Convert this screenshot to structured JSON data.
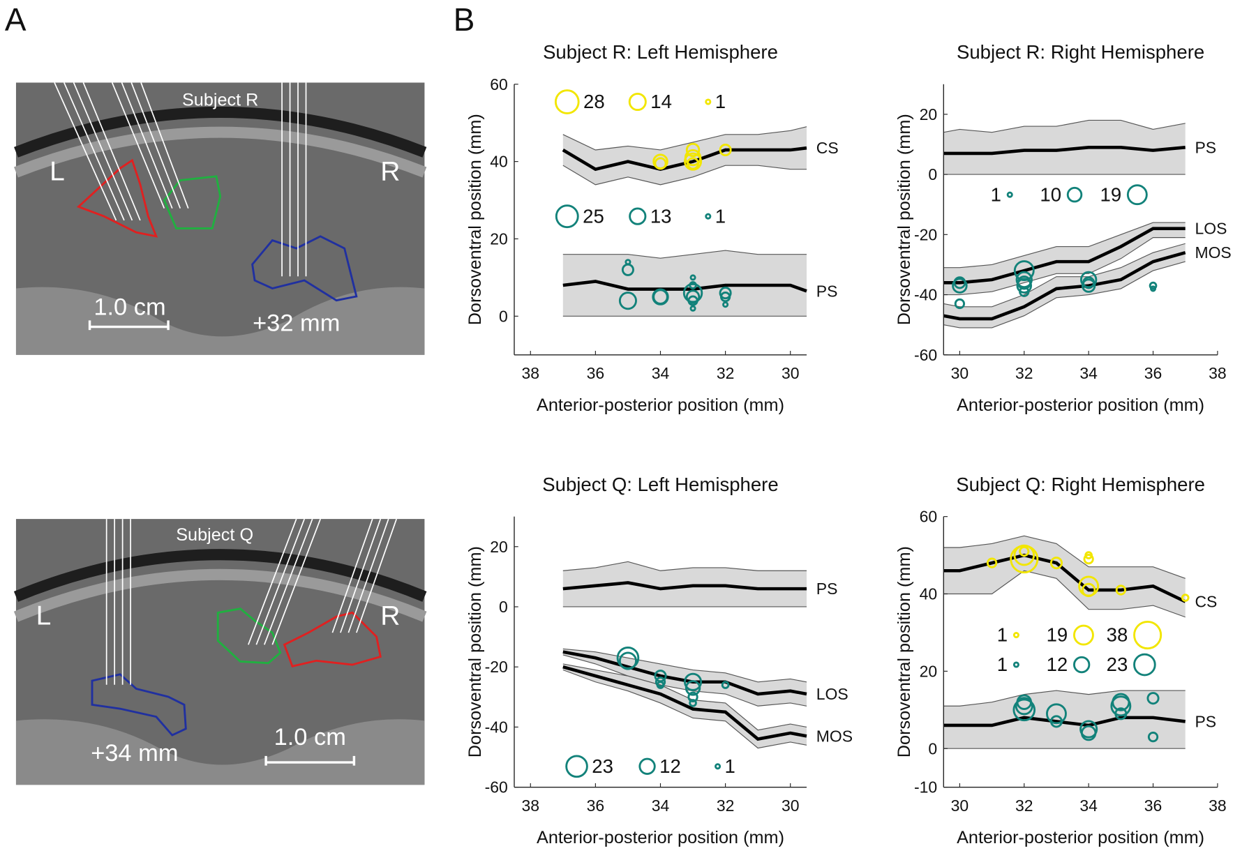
{
  "panel_labels": [
    "A",
    "B"
  ],
  "images": [
    {
      "title": "Subject R",
      "left": "L",
      "right": "R",
      "scale_bar": "1.0 cm",
      "position": "+32 mm"
    },
    {
      "title": "Subject Q",
      "left": "L",
      "right": "R",
      "scale_bar": "1.0 cm",
      "position": "+34 mm"
    }
  ],
  "chart_data": [
    {
      "type": "scatter",
      "title": "Subject R: Left Hemisphere",
      "xlabel": "Anterior-posterior position (mm)",
      "ylabel": "Dorsoventral position (mm)",
      "xlim": [
        38.5,
        29.5
      ],
      "xticks": [
        38,
        36,
        34,
        32,
        30
      ],
      "ylim": [
        -10,
        60
      ],
      "yticks": [
        0,
        20,
        40,
        60
      ],
      "band_color": "#d9d9d9",
      "line_color": "#000000",
      "bands": [
        {
          "name": "CS",
          "x": [
            37,
            36,
            35,
            34,
            33,
            32,
            31,
            30,
            29.5
          ],
          "values": [
            43,
            38,
            40,
            38,
            40,
            43,
            43,
            43,
            43.5
          ],
          "upper": [
            47,
            43,
            44,
            43,
            45,
            47,
            47,
            48,
            49
          ],
          "lower": [
            39,
            34,
            36,
            34,
            36,
            39,
            39,
            38,
            38
          ]
        },
        {
          "name": "PS",
          "x": [
            37,
            36,
            35,
            34,
            33,
            32,
            31,
            30,
            29.5
          ],
          "values": [
            8,
            9,
            7,
            7,
            7,
            8,
            8,
            8,
            6.5
          ],
          "upper": [
            16,
            16,
            16,
            15,
            16,
            17,
            16,
            16,
            16
          ],
          "lower": [
            0,
            0,
            0,
            0,
            0,
            0,
            0,
            0,
            0
          ]
        }
      ],
      "series": [
        {
          "color": "#f2e600",
          "x": [
            34,
            34,
            33,
            33,
            33,
            33,
            32
          ],
          "values": [
            40,
            39.5,
            43,
            41,
            39.5,
            40,
            43
          ],
          "sizes": [
            10,
            6,
            8,
            12,
            6,
            14,
            6
          ]
        },
        {
          "color": "#12827a",
          "x": [
            35,
            35,
            35,
            34,
            34,
            33,
            33,
            33,
            33,
            33,
            33,
            32,
            32,
            32
          ],
          "values": [
            14,
            12,
            4,
            5,
            5,
            6,
            5,
            4,
            2,
            8,
            10,
            6,
            5,
            3
          ],
          "sizes": [
            1,
            6,
            14,
            10,
            12,
            17,
            8,
            4,
            1,
            2,
            1,
            6,
            4,
            1
          ]
        }
      ],
      "size_legends": [
        {
          "color": "#f2e600",
          "sizes": [
            28,
            14,
            1
          ]
        },
        {
          "color": "#12827a",
          "sizes": [
            25,
            13,
            1
          ]
        }
      ]
    },
    {
      "type": "scatter",
      "title": "Subject R: Right Hemisphere",
      "xlabel": "Anterior-posterior position (mm)",
      "ylabel": "Dorsoventral position (mm)",
      "xlim": [
        29.5,
        38
      ],
      "xticks": [
        30,
        32,
        34,
        36,
        38
      ],
      "ylim": [
        -60,
        30
      ],
      "yticks": [
        -60,
        -40,
        -20,
        0,
        20
      ],
      "band_color": "#d9d9d9",
      "line_color": "#000000",
      "bands": [
        {
          "name": "PS",
          "x": [
            29.5,
            30,
            31,
            32,
            33,
            34,
            35,
            36,
            37
          ],
          "values": [
            7,
            7,
            7,
            8,
            8,
            9,
            9,
            8,
            9
          ],
          "upper": [
            14,
            15,
            14,
            16,
            16,
            18,
            18,
            15,
            17
          ],
          "lower": [
            0,
            0,
            0,
            0,
            0,
            0,
            0,
            0,
            0
          ]
        },
        {
          "name": "LOS",
          "x": [
            29.5,
            30,
            31,
            32,
            33,
            34,
            35,
            36,
            37
          ],
          "values": [
            -36,
            -36,
            -35,
            -32,
            -29,
            -29,
            -24,
            -18,
            -18
          ],
          "upper": [
            -31,
            -31,
            -30,
            -27,
            -24,
            -24,
            -20,
            -16,
            -16
          ],
          "lower": [
            -40,
            -40,
            -39,
            -36,
            -33,
            -33,
            -28,
            -21,
            -21
          ]
        },
        {
          "name": "MOS",
          "x": [
            29.5,
            30,
            31,
            32,
            33,
            34,
            35,
            36,
            37
          ],
          "values": [
            -47,
            -48,
            -48,
            -44,
            -38,
            -37,
            -35,
            -29,
            -26
          ],
          "upper": [
            -43,
            -44,
            -44,
            -40,
            -34,
            -34,
            -31,
            -26,
            -23
          ],
          "lower": [
            -50,
            -51,
            -51,
            -47,
            -41,
            -40,
            -38,
            -32,
            -29
          ]
        }
      ],
      "series": [
        {
          "color": "#12827a",
          "x": [
            30,
            30,
            30,
            32,
            32,
            32,
            32,
            32,
            34,
            34,
            34,
            36,
            36
          ],
          "values": [
            -37,
            -36,
            -43,
            -32,
            -35,
            -37,
            -39,
            -36,
            -35,
            -37,
            -36,
            -37,
            -38
          ],
          "sizes": [
            10,
            6,
            4,
            19,
            12,
            10,
            4,
            8,
            12,
            8,
            6,
            2,
            1
          ]
        }
      ],
      "size_legends": [
        {
          "color": "#12827a",
          "sizes": [
            1,
            10,
            19
          ]
        }
      ]
    },
    {
      "type": "scatter",
      "title": "Subject Q: Left Hemisphere",
      "xlabel": "Anterior-posterior position (mm)",
      "ylabel": "Dorsoventral position (mm)",
      "xlim": [
        38.5,
        29.5
      ],
      "xticks": [
        38,
        36,
        34,
        32,
        30
      ],
      "ylim": [
        -60,
        30
      ],
      "yticks": [
        -60,
        -40,
        -20,
        0,
        20
      ],
      "band_color": "#d9d9d9",
      "line_color": "#000000",
      "bands": [
        {
          "name": "PS",
          "x": [
            37,
            36,
            35,
            34,
            33,
            32,
            31,
            30,
            29.5
          ],
          "values": [
            6,
            7,
            8,
            6,
            7,
            7,
            6,
            6,
            6
          ],
          "upper": [
            12,
            13,
            15,
            12,
            13,
            13,
            12,
            12,
            12
          ],
          "lower": [
            0,
            0,
            0,
            0,
            0,
            0,
            0,
            0,
            0
          ]
        },
        {
          "name": "LOS",
          "x": [
            37,
            36,
            35,
            34,
            33,
            32,
            31,
            30,
            29.5
          ],
          "values": [
            -15,
            -17,
            -20,
            -23,
            -25,
            -25,
            -29,
            -28,
            -29
          ],
          "upper": [
            -14,
            -15,
            -17,
            -19,
            -21,
            -22,
            -25,
            -24,
            -25
          ],
          "lower": [
            -16,
            -19,
            -23,
            -26,
            -28,
            -29,
            -33,
            -32,
            -33
          ]
        },
        {
          "name": "MOS",
          "x": [
            37,
            36,
            35,
            34,
            33,
            32,
            31,
            30,
            29.5
          ],
          "values": [
            -20,
            -23,
            -26,
            -29,
            -34,
            -35,
            -44,
            -42,
            -43
          ],
          "upper": [
            -19,
            -21,
            -23,
            -26,
            -31,
            -32,
            -41,
            -39,
            -40
          ],
          "lower": [
            -21,
            -25,
            -28,
            -32,
            -37,
            -38,
            -47,
            -45,
            -46
          ]
        }
      ],
      "series": [
        {
          "color": "#12827a",
          "x": [
            35,
            35,
            34,
            34,
            34,
            33,
            33,
            33,
            33,
            32
          ],
          "values": [
            -17,
            -18,
            -23,
            -25,
            -26,
            -25,
            -27,
            -30,
            -32,
            -26
          ],
          "sizes": [
            23,
            14,
            6,
            4,
            2,
            14,
            10,
            4,
            2,
            2
          ]
        }
      ],
      "size_legends": [
        {
          "color": "#12827a",
          "sizes": [
            23,
            12,
            1
          ]
        }
      ]
    },
    {
      "type": "scatter",
      "title": "Subject Q: Right Hemisphere",
      "xlabel": "Anterior-posterior position (mm)",
      "ylabel": "Dorsoventral position (mm)",
      "xlim": [
        29.5,
        38
      ],
      "xticks": [
        30,
        32,
        34,
        36,
        38
      ],
      "ylim": [
        -10,
        60
      ],
      "yticks": [
        -10,
        0,
        20,
        40,
        60
      ],
      "band_color": "#d9d9d9",
      "line_color": "#000000",
      "bands": [
        {
          "name": "CS",
          "x": [
            29.5,
            30,
            31,
            32,
            33,
            34,
            35,
            36,
            37
          ],
          "values": [
            46,
            46,
            48,
            50,
            48,
            41,
            41,
            42,
            38
          ],
          "upper": [
            52,
            52,
            53,
            55,
            53,
            47,
            47,
            47,
            44
          ],
          "lower": [
            40,
            40,
            40,
            46,
            44,
            36,
            36,
            37,
            34
          ]
        },
        {
          "name": "PS",
          "x": [
            29.5,
            30,
            31,
            32,
            33,
            34,
            35,
            36,
            37
          ],
          "values": [
            6,
            6,
            6,
            8,
            7,
            6,
            8,
            8,
            7
          ],
          "upper": [
            11,
            11,
            12,
            14,
            15,
            14,
            15,
            15,
            15
          ],
          "lower": [
            0,
            0,
            0,
            0,
            0,
            0,
            0,
            0,
            0
          ]
        }
      ],
      "series": [
        {
          "color": "#f2e600",
          "x": [
            31,
            32,
            32,
            32,
            33,
            34,
            34,
            34,
            34,
            35,
            37
          ],
          "values": [
            48,
            49,
            50,
            51,
            48,
            42,
            41,
            49,
            50,
            41,
            39
          ],
          "sizes": [
            4,
            38,
            20,
            4,
            6,
            19,
            8,
            4,
            2,
            4,
            2
          ]
        },
        {
          "color": "#12827a",
          "x": [
            32,
            32,
            32,
            33,
            33,
            34,
            34,
            35,
            35,
            35,
            36,
            36
          ],
          "values": [
            10,
            11,
            12,
            9,
            7,
            5,
            4,
            9,
            11,
            12,
            13,
            3
          ],
          "sizes": [
            23,
            14,
            10,
            19,
            6,
            14,
            10,
            6,
            19,
            14,
            6,
            4
          ]
        }
      ],
      "size_legends": [
        {
          "color": "#f2e600",
          "sizes": [
            1,
            19,
            38
          ]
        },
        {
          "color": "#12827a",
          "sizes": [
            1,
            12,
            23
          ]
        }
      ]
    }
  ]
}
